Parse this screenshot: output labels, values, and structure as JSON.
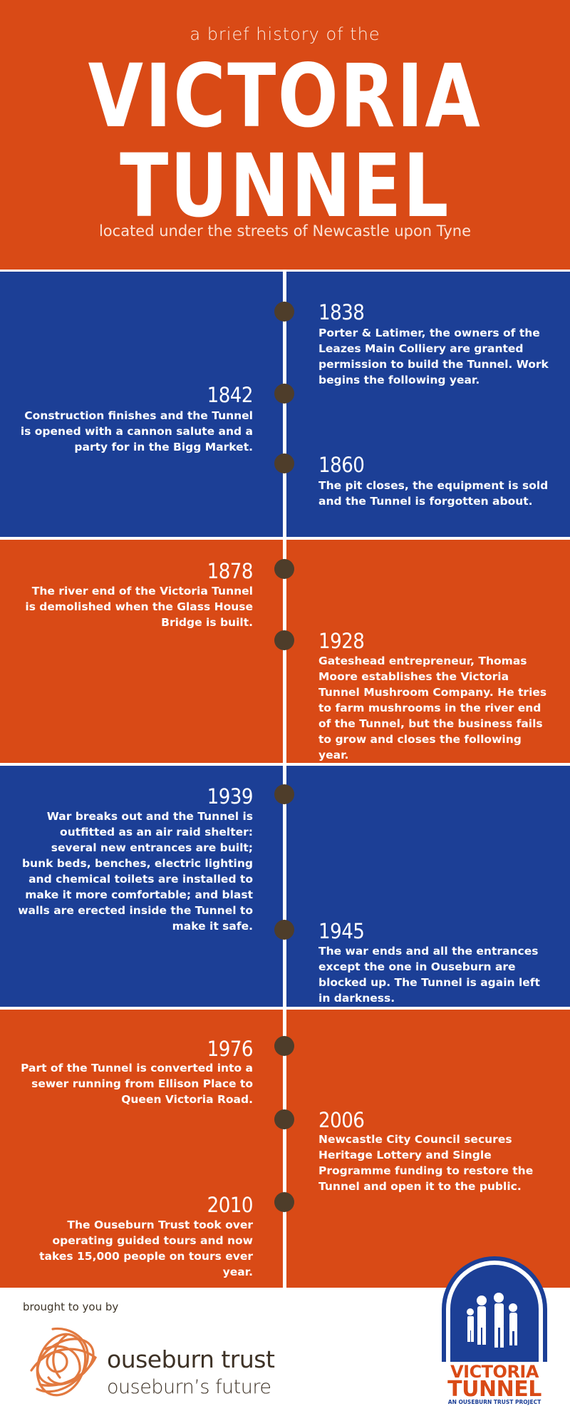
{
  "header": {
    "subtitle": "a brief history of the",
    "title_line1": "VICTORIA",
    "title_line2": "TUNNEL",
    "location": "located under the streets of Newcastle upon Tyne"
  },
  "colors": {
    "orange": "#d94a16",
    "blue": "#1c3f96",
    "dot": "#4e3d2a"
  },
  "events": [
    {
      "year": "1838",
      "text": "Porter & Latimer, the owners of the Leazes Main Colliery are granted permission to build the Tunnel. Work begins the following year."
    },
    {
      "year": "1842",
      "text": "Construction finishes and the Tunnel is opened with a cannon salute and a party for in the Bigg Market."
    },
    {
      "year": "1860",
      "text": "The pit closes, the equipment is sold and the Tunnel is forgotten about."
    },
    {
      "year": "1878",
      "text": "The river end of the Victoria Tunnel is demolished when the Glass House Bridge is built."
    },
    {
      "year": "1928",
      "text": "Gateshead entrepreneur, Thomas Moore establishes the Victoria Tunnel Mushroom Company. He tries to farm mushrooms in the river end of the Tunnel, but the business fails to grow and closes the following year."
    },
    {
      "year": "1939",
      "text": "War breaks out and the Tunnel is outfitted as an air raid shelter: several new entrances are built; bunk beds, benches, electric lighting and chemical toilets are installed to make it more comfortable; and blast walls are erected inside the Tunnel to make it safe."
    },
    {
      "year": "1945",
      "text": "The war ends and all the entrances except the one in Ouseburn are blocked up. The Tunnel is again left in darkness."
    },
    {
      "year": "1976",
      "text": "Part of the Tunnel is converted into a sewer running from Ellison Place to Queen Victoria Road."
    },
    {
      "year": "2006",
      "text": "Newcastle City Council secures Heritage Lottery and Single Programme funding to restore the Tunnel and open it to the public."
    },
    {
      "year": "2010",
      "text": "The Ouseburn Trust took over operating guided tours and now takes 15,000 people on tours ever year."
    }
  ],
  "footer": {
    "brought_by": "brought to you by",
    "org_name": "ouseburn trust",
    "org_tagline": "ouseburn’s future",
    "logo_line1": "VICTORIA",
    "logo_line2": "TUNNEL",
    "logo_line3": "AN OUSEBURN TRUST PROJECT"
  }
}
